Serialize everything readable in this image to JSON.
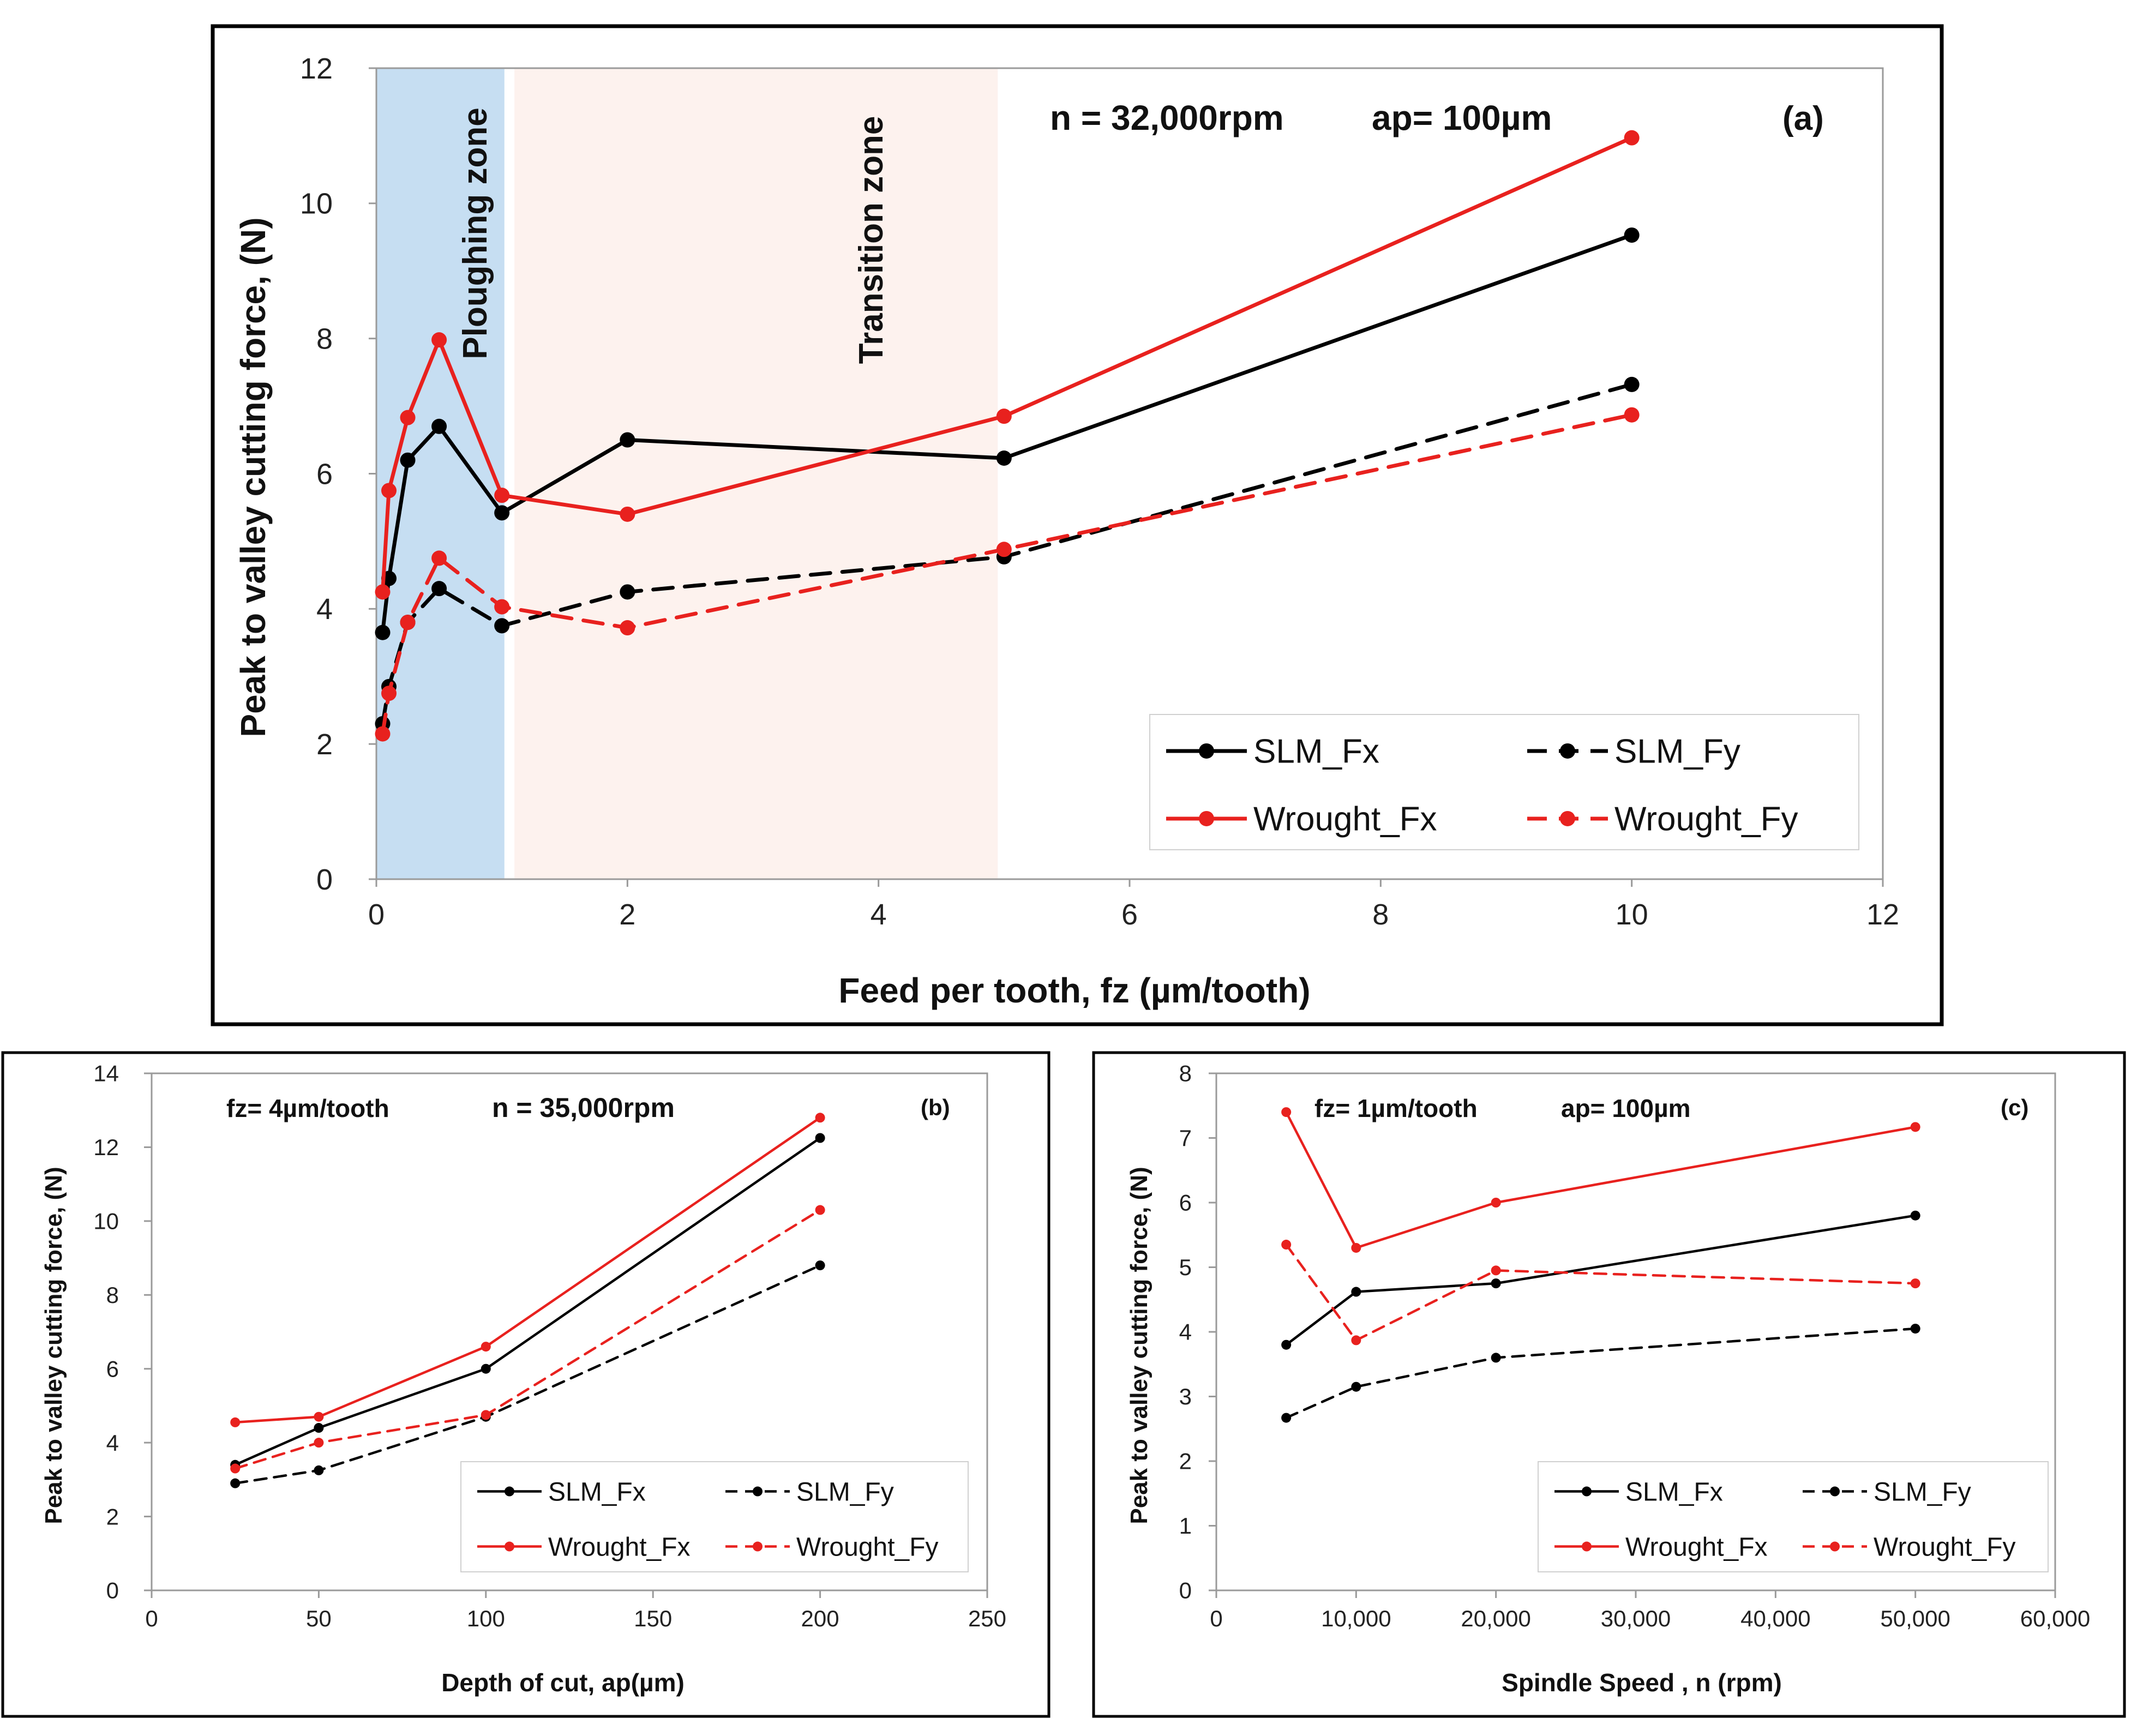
{
  "chart_data": [
    {
      "id": "a",
      "type": "line",
      "panel_label": "(a)",
      "annotation": [
        "n = 32,000rpm",
        "ap= 100µm"
      ],
      "xlabel": "Feed per tooth, fz (µm/tooth)",
      "ylabel": "Peak to valley cutting force, (N)",
      "xlim": [
        0,
        12
      ],
      "ylim": [
        0,
        12
      ],
      "xticks": [
        0,
        2,
        4,
        6,
        8,
        10,
        12
      ],
      "yticks": [
        0,
        2,
        4,
        6,
        8,
        10,
        12
      ],
      "xtick_labels": [
        "0",
        "2",
        "4",
        "6",
        "8",
        "10",
        "12"
      ],
      "ytick_labels": [
        "0",
        "2",
        "4",
        "6",
        "8",
        "10",
        "12"
      ],
      "zones": [
        {
          "label": "Ploughing zone",
          "x_range": [
            0,
            1.02
          ],
          "color": "#c6def2"
        },
        {
          "label": "Transition zone",
          "x_range": [
            1.1,
            4.95
          ],
          "color": "#fdf2ee"
        }
      ],
      "legend_position": "bottom-right",
      "series": [
        {
          "name": "SLM_Fx",
          "style": "solid",
          "color": "#000000",
          "x": [
            0.05,
            0.1,
            0.25,
            0.5,
            1,
            2,
            5,
            10
          ],
          "y": [
            3.65,
            4.45,
            6.2,
            6.7,
            5.42,
            6.5,
            6.23,
            9.53
          ]
        },
        {
          "name": "SLM_Fy",
          "style": "dashed",
          "color": "#000000",
          "x": [
            0.05,
            0.1,
            0.25,
            0.5,
            1,
            2,
            5,
            10
          ],
          "y": [
            2.3,
            2.85,
            3.8,
            4.3,
            3.75,
            4.25,
            4.77,
            7.32
          ]
        },
        {
          "name": "Wrought_Fx",
          "style": "solid",
          "color": "#e8211e",
          "x": [
            0.05,
            0.1,
            0.25,
            0.5,
            1,
            2,
            5,
            10
          ],
          "y": [
            4.25,
            5.75,
            6.83,
            7.98,
            5.68,
            5.4,
            6.85,
            10.97
          ]
        },
        {
          "name": "Wrought_Fy",
          "style": "dashed",
          "color": "#e8211e",
          "x": [
            0.05,
            0.1,
            0.25,
            0.5,
            1,
            2,
            5,
            10
          ],
          "y": [
            2.15,
            2.75,
            3.8,
            4.75,
            4.03,
            3.72,
            4.88,
            6.87
          ]
        }
      ]
    },
    {
      "id": "b",
      "type": "line",
      "panel_label": "(b)",
      "annotation": [
        "fz= 4µm/tooth",
        "n = 35,000rpm"
      ],
      "xlabel": "Depth of cut, ap(µm)",
      "ylabel": "Peak to valley cutting force, (N)",
      "xlim": [
        0,
        250
      ],
      "ylim": [
        0,
        14
      ],
      "xticks": [
        0,
        50,
        100,
        150,
        200,
        250
      ],
      "yticks": [
        0,
        2,
        4,
        6,
        8,
        10,
        12,
        14
      ],
      "xtick_labels": [
        "0",
        "50",
        "100",
        "150",
        "200",
        "250"
      ],
      "ytick_labels": [
        "0",
        "2",
        "4",
        "6",
        "8",
        "10",
        "12",
        "14"
      ],
      "legend_position": "bottom-right",
      "series": [
        {
          "name": "SLM_Fx",
          "style": "solid",
          "color": "#000000",
          "x": [
            25,
            50,
            100,
            200
          ],
          "y": [
            3.4,
            4.4,
            6.0,
            12.25
          ]
        },
        {
          "name": "SLM_Fy",
          "style": "dashed",
          "color": "#000000",
          "x": [
            25,
            50,
            100,
            200
          ],
          "y": [
            2.9,
            3.25,
            4.7,
            8.8
          ]
        },
        {
          "name": "Wrought_Fx",
          "style": "solid",
          "color": "#e8211e",
          "x": [
            25,
            50,
            100,
            200
          ],
          "y": [
            4.55,
            4.7,
            6.6,
            12.8
          ]
        },
        {
          "name": "Wrought_Fy",
          "style": "dashed",
          "color": "#e8211e",
          "x": [
            25,
            50,
            100,
            200
          ],
          "y": [
            3.3,
            4.0,
            4.75,
            10.3
          ]
        }
      ]
    },
    {
      "id": "c",
      "type": "line",
      "panel_label": "(c)",
      "annotation": [
        "fz= 1µm/tooth",
        "ap= 100µm"
      ],
      "xlabel": "Spindle Speed , n (rpm)",
      "ylabel": "Peak to valley cutting force, (N)",
      "xlim": [
        0,
        60000
      ],
      "ylim": [
        0,
        8
      ],
      "xticks": [
        0,
        10000,
        20000,
        30000,
        40000,
        50000,
        60000
      ],
      "yticks": [
        0,
        1,
        2,
        3,
        4,
        5,
        6,
        7,
        8
      ],
      "xtick_labels": [
        "0",
        "10,000",
        "20,000",
        "30,000",
        "40,000",
        "50,000",
        "60,000"
      ],
      "ytick_labels": [
        "0",
        "1",
        "2",
        "3",
        "4",
        "5",
        "6",
        "7",
        "8"
      ],
      "legend_position": "bottom-right",
      "series": [
        {
          "name": "SLM_Fx",
          "style": "solid",
          "color": "#000000",
          "x": [
            5000,
            10000,
            20000,
            50000
          ],
          "y": [
            3.8,
            4.62,
            4.75,
            5.8
          ]
        },
        {
          "name": "SLM_Fy",
          "style": "dashed",
          "color": "#000000",
          "x": [
            5000,
            10000,
            20000,
            50000
          ],
          "y": [
            2.67,
            3.15,
            3.6,
            4.05
          ]
        },
        {
          "name": "Wrought_Fx",
          "style": "solid",
          "color": "#e8211e",
          "x": [
            5000,
            10000,
            20000,
            50000
          ],
          "y": [
            7.4,
            5.3,
            6.0,
            7.17
          ]
        },
        {
          "name": "Wrought_Fy",
          "style": "dashed",
          "color": "#e8211e",
          "x": [
            5000,
            10000,
            20000,
            50000
          ],
          "y": [
            5.35,
            3.87,
            4.95,
            4.75
          ]
        }
      ]
    }
  ]
}
